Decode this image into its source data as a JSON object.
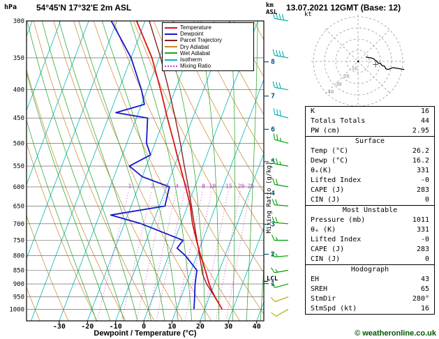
{
  "title": "54°45'N 17°32'E 2m ASL",
  "datetime": "13.07.2021 12GMT (Base: 12)",
  "copyright": "© weatheronline.co.uk",
  "labels": {
    "pressure_unit": "hPa",
    "xlabel": "Dewpoint / Temperature (°C)",
    "mixing_ratio": "Mixing Ratio (g/kg)",
    "km": "km",
    "asl": "ASL",
    "kt": "kt",
    "lcl": "LCL"
  },
  "colors": {
    "temperature": "#e01010",
    "dewpoint": "#1616cc",
    "parcel": "#8b2020",
    "dry_adiabat": "#c8862c",
    "wet_adiabat": "#1ea01e",
    "isotherm": "#00b6b6",
    "mixing_ratio": "#cc33cc",
    "isobar": "#555555",
    "frame": "#000000",
    "km_scale": "#005577",
    "barb_high": "#00b0b0",
    "barb_mid": "#00a000",
    "barb_low": "#b0b000",
    "copyright": "#005500"
  },
  "legend": {
    "items": [
      {
        "label": "Temperature",
        "color": "#e01010",
        "style": "solid"
      },
      {
        "label": "Dewpoint",
        "color": "#1616cc",
        "style": "solid"
      },
      {
        "label": "Parcel Trajectory",
        "color": "#8b2020",
        "style": "solid"
      },
      {
        "label": "Dry Adiabat",
        "color": "#c8862c",
        "style": "solid"
      },
      {
        "label": "Wet Adiabat",
        "color": "#1ea01e",
        "style": "solid"
      },
      {
        "label": "Isotherm",
        "color": "#00b6b6",
        "style": "solid"
      },
      {
        "label": "Mixing Ratio",
        "color": "#cc33cc",
        "style": "dotted"
      }
    ]
  },
  "axes": {
    "pressure_ticks": [
      300,
      350,
      400,
      450,
      500,
      550,
      600,
      650,
      700,
      750,
      800,
      850,
      900,
      950,
      1000
    ],
    "temp_ticks": [
      -30,
      -20,
      -10,
      0,
      10,
      20,
      30,
      40
    ],
    "km_ticks": [
      1,
      2,
      3,
      4,
      5,
      6,
      7,
      8
    ],
    "mixing_ratio_values": [
      1,
      2,
      3,
      4,
      5,
      8,
      10,
      15,
      20,
      25
    ],
    "pressure_range": [
      1050,
      300
    ],
    "temp_range": [
      -40,
      40
    ],
    "lcl_pressure_hpa": 890
  },
  "chart_data": {
    "type": "line",
    "subtype": "skew-t log-p sounding",
    "title": "54°45'N 17°32'E 2m ASL",
    "xlabel": "Dewpoint / Temperature (°C)",
    "ylabel": "hPa",
    "pressure_hpa": [
      1000,
      950,
      925,
      900,
      850,
      800,
      775,
      750,
      700,
      675,
      650,
      600,
      575,
      550,
      525,
      500,
      450,
      440,
      425,
      400,
      350,
      300
    ],
    "temperature_c": [
      26.2,
      22.0,
      20.0,
      18.2,
      15.0,
      11.4,
      9.6,
      7.8,
      4.2,
      2.6,
      1.0,
      -3.2,
      -5.6,
      -8.0,
      -10.6,
      -13.2,
      -19.0,
      -20.2,
      -22.0,
      -25.2,
      -32.6,
      -43.0
    ],
    "dewpoint_c": [
      16.2,
      14.8,
      14.0,
      13.2,
      12.0,
      6.0,
      2.0,
      3.0,
      -14.0,
      -26.0,
      -8.0,
      -9.0,
      -20.0,
      -26.0,
      -20.0,
      -23.0,
      -26.0,
      -38.0,
      -29.0,
      -32.0,
      -40.0,
      -52.0
    ],
    "parcel": {
      "pressure_hpa": [
        1000,
        950,
        900,
        865,
        850,
        800,
        750,
        700,
        650,
        600,
        550,
        500,
        450,
        400,
        350,
        300
      ],
      "temperature_c": [
        26.2,
        21.9,
        17.3,
        14.6,
        13.8,
        11.0,
        8.0,
        4.8,
        1.4,
        -2.3,
        -6.5,
        -11.0,
        -16.2,
        -22.3,
        -29.5,
        -38.5
      ]
    },
    "wind": [
      {
        "p": 1000,
        "dir": 240,
        "spd": 8
      },
      {
        "p": 950,
        "dir": 250,
        "spd": 10
      },
      {
        "p": 900,
        "dir": 255,
        "spd": 12
      },
      {
        "p": 850,
        "dir": 260,
        "spd": 14
      },
      {
        "p": 800,
        "dir": 265,
        "spd": 15
      },
      {
        "p": 750,
        "dir": 270,
        "spd": 17
      },
      {
        "p": 700,
        "dir": 275,
        "spd": 18
      },
      {
        "p": 650,
        "dir": 275,
        "spd": 20
      },
      {
        "p": 600,
        "dir": 280,
        "spd": 22
      },
      {
        "p": 550,
        "dir": 280,
        "spd": 24
      },
      {
        "p": 500,
        "dir": 285,
        "spd": 26
      },
      {
        "p": 450,
        "dir": 285,
        "spd": 28
      },
      {
        "p": 400,
        "dir": 280,
        "spd": 32
      },
      {
        "p": 350,
        "dir": 280,
        "spd": 38
      },
      {
        "p": 300,
        "dir": 280,
        "spd": 42
      }
    ]
  },
  "hodograph": {
    "unit_label": "kt",
    "rings_kt": [
      10,
      20,
      30,
      40
    ],
    "storm_dir_deg": 280,
    "storm_speed_kt": 16
  },
  "table": {
    "rows_top": [
      {
        "label": "K",
        "value": "16"
      },
      {
        "label": "Totals Totals",
        "value": "44"
      },
      {
        "label": "PW (cm)",
        "value": "2.95"
      }
    ],
    "sections": [
      {
        "header": "Surface",
        "rows": [
          {
            "label": "Temp (°C)",
            "value": "26.2"
          },
          {
            "label": "Dewp (°C)",
            "value": "16.2"
          },
          {
            "label": "θₑ(K)",
            "value": "331"
          },
          {
            "label": "Lifted Index",
            "value": "-0"
          },
          {
            "label": "CAPE (J)",
            "value": "283"
          },
          {
            "label": "CIN (J)",
            "value": "0"
          }
        ]
      },
      {
        "header": "Most Unstable",
        "rows": [
          {
            "label": "Pressure (mb)",
            "value": "1011"
          },
          {
            "label": "θₑ (K)",
            "value": "331"
          },
          {
            "label": "Lifted Index",
            "value": "-0"
          },
          {
            "label": "CAPE (J)",
            "value": "283"
          },
          {
            "label": "CIN (J)",
            "value": "0"
          }
        ]
      },
      {
        "header": "Hodograph",
        "rows": [
          {
            "label": "EH",
            "value": "43"
          },
          {
            "label": "SREH",
            "value": "65"
          },
          {
            "label": "StmDir",
            "value": "280°"
          },
          {
            "label": "StmSpd (kt)",
            "value": "16"
          }
        ]
      }
    ]
  }
}
